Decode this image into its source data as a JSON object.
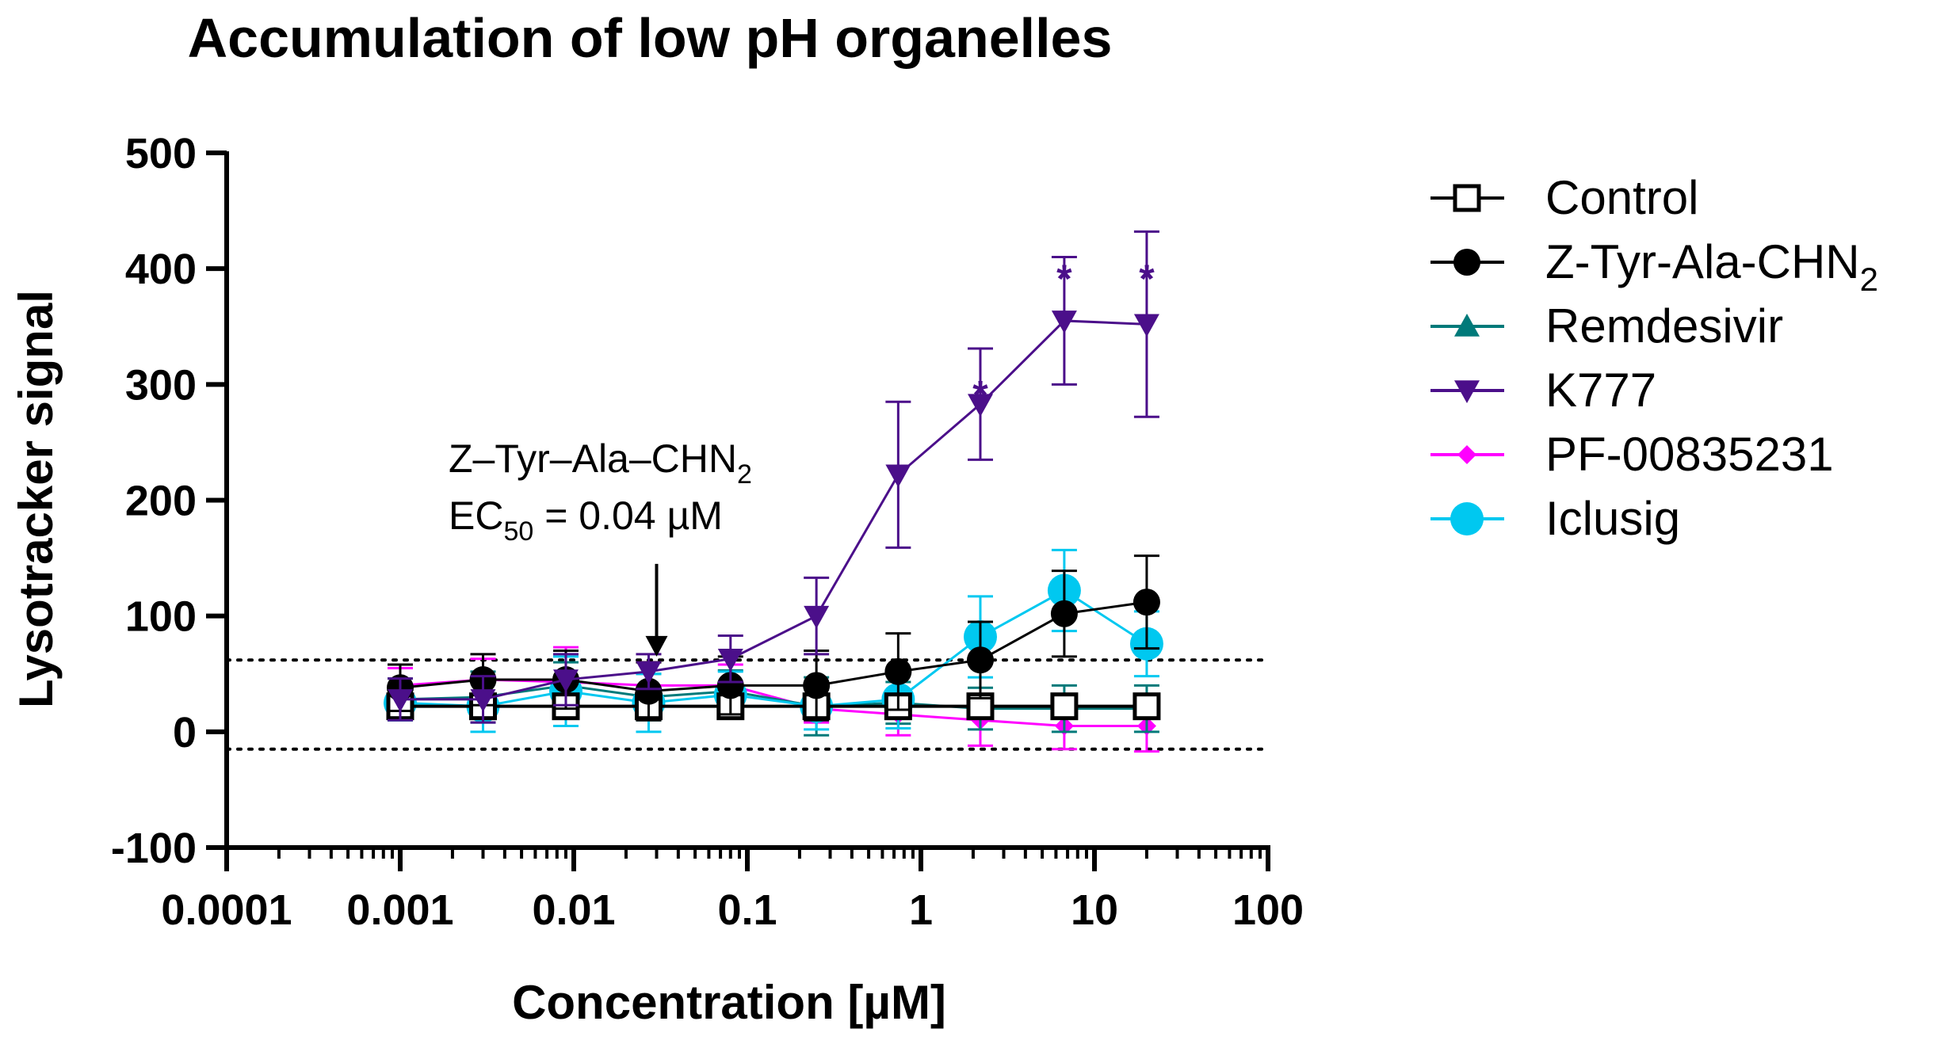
{
  "chart_data": {
    "type": "scatter",
    "title": "Accumulation of low pH organelles",
    "xlabel": "Concentration [µM]",
    "ylabel": "Lysotracker signal",
    "xscale": "log",
    "xlim": [
      0.0001,
      100
    ],
    "ylim": [
      -100,
      500
    ],
    "xticks": [
      0.0001,
      0.001,
      0.01,
      0.1,
      1,
      10,
      100
    ],
    "xtick_labels": [
      "0.0001",
      "0.001",
      "0.01",
      "0.1",
      "1",
      "10",
      "100"
    ],
    "yticks": [
      -100,
      0,
      100,
      200,
      300,
      400,
      500
    ],
    "ytick_labels": [
      "-100",
      "0",
      "100",
      "200",
      "300",
      "400",
      "500"
    ],
    "x": [
      0.001,
      0.003,
      0.009,
      0.027,
      0.08,
      0.25,
      0.74,
      2.2,
      6.7,
      20
    ],
    "reference_lines": [
      62,
      -15
    ],
    "legend_position": "right",
    "series": [
      {
        "name": "PF-00835231",
        "color": "#ff00ff",
        "marker": "diamond",
        "values": [
          40,
          45,
          43,
          40,
          40,
          20,
          15,
          10,
          5,
          5
        ],
        "errors": [
          15,
          18,
          30,
          20,
          18,
          12,
          18,
          22,
          20,
          22
        ]
      },
      {
        "name": "Remdesivir",
        "color": "#007a7a",
        "marker": "triangle-up",
        "values": [
          28,
          30,
          40,
          30,
          35,
          22,
          25,
          20,
          20,
          20
        ],
        "errors": [
          18,
          22,
          20,
          20,
          18,
          25,
          18,
          18,
          20,
          20
        ]
      },
      {
        "name": "Iclusig",
        "color": "#00c8f0",
        "marker": "circle-large",
        "values": [
          25,
          22,
          35,
          25,
          32,
          22,
          28,
          82,
          122,
          76
        ],
        "errors": [
          15,
          22,
          30,
          25,
          20,
          20,
          25,
          35,
          35,
          28
        ]
      },
      {
        "name": "Control",
        "color": "#000000",
        "marker": "open-square",
        "values": [
          22,
          22,
          22,
          22,
          22,
          22,
          22,
          22,
          22,
          22
        ],
        "errors": [
          5,
          5,
          5,
          5,
          5,
          5,
          5,
          5,
          5,
          5
        ]
      },
      {
        "name": "Z-Tyr-Ala-CHN",
        "color": "#000000",
        "marker": "circle",
        "values": [
          38,
          45,
          45,
          35,
          40,
          40,
          52,
          62,
          102,
          112
        ],
        "errors": [
          20,
          22,
          25,
          25,
          25,
          30,
          33,
          33,
          37,
          40
        ]
      },
      {
        "name": "K777",
        "color": "#4b0f8a",
        "marker": "triangle-down",
        "values": [
          28,
          28,
          45,
          52,
          63,
          100,
          222,
          283,
          355,
          352
        ],
        "errors": [
          18,
          20,
          22,
          15,
          20,
          33,
          63,
          48,
          55,
          80
        ]
      }
    ],
    "legend_order": [
      "Control",
      "Z-Tyr-Ala-CHN",
      "Remdesivir",
      "K777",
      "PF-00835231",
      "Iclusig"
    ],
    "legend_subscript": {
      "Z-Tyr-Ala-CHN": "2"
    },
    "significance": [
      {
        "x": 2.2,
        "y": 300,
        "label": "*"
      },
      {
        "x": 6.7,
        "y": 400,
        "label": "*"
      },
      {
        "x": 20,
        "y": 400,
        "label": "*"
      }
    ],
    "annotation": {
      "line1": "Z–Tyr–Ala–CHN",
      "line1_sub": "2",
      "line2_pre": "EC",
      "line2_sub": "50",
      "line2_post": " = 0.04 µM",
      "arrow_x": 0.03,
      "arrow_y_top": 145,
      "arrow_y_bottom": 65
    }
  }
}
